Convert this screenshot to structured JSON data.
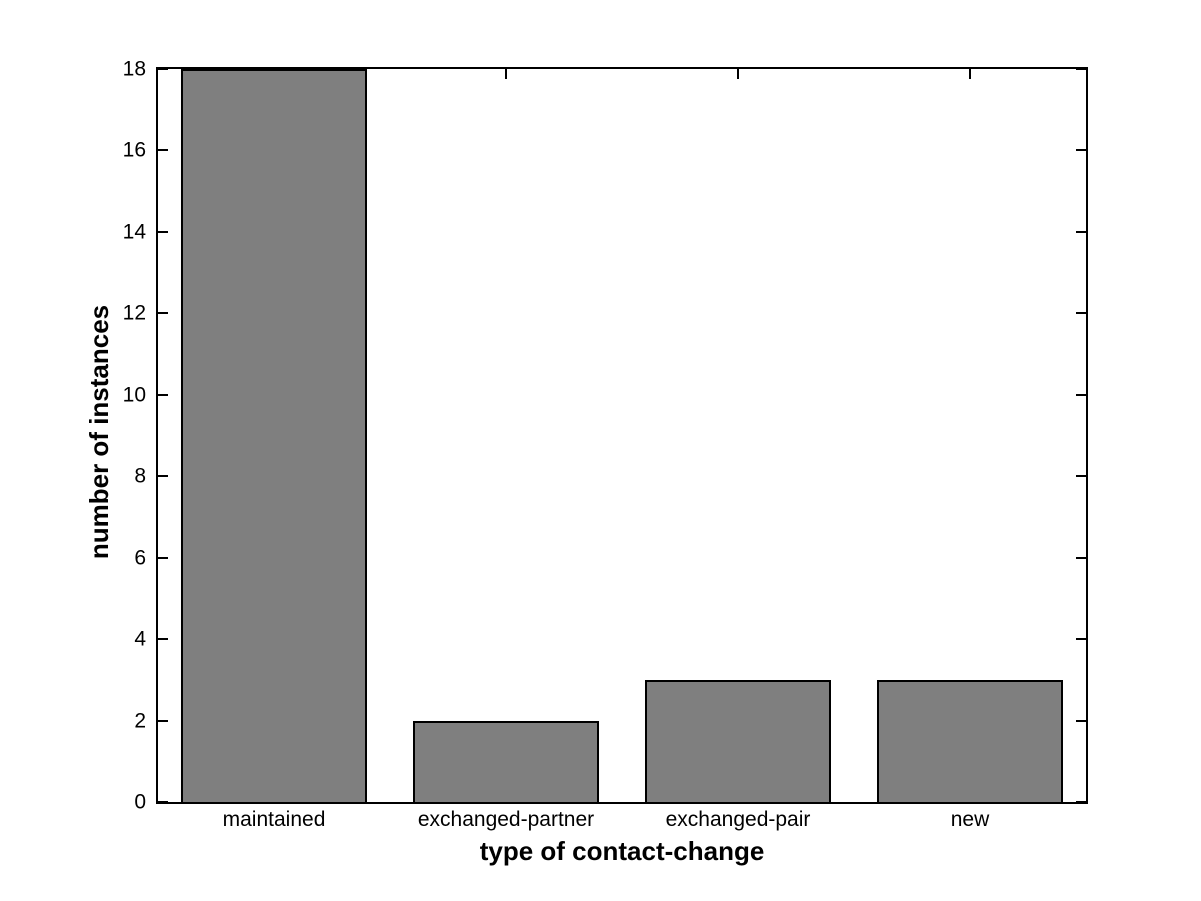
{
  "figure": {
    "background_color": "#ffffff"
  },
  "chart_data": {
    "type": "bar",
    "title": "",
    "categories": [
      "maintained",
      "exchanged-partner",
      "exchanged-pair",
      "new"
    ],
    "values": [
      18,
      2,
      3,
      3
    ],
    "xlabel": "type of contact-change",
    "ylabel": "number of instances",
    "ylim": [
      0,
      18
    ],
    "yticks": [
      0,
      2,
      4,
      6,
      8,
      10,
      12,
      14,
      16,
      18
    ],
    "bar_width_fraction": 0.8,
    "bar_fill_color": "#7f7f7f",
    "bar_edge_color": "#000000",
    "axis_color": "#000000",
    "grid": false,
    "box": true,
    "legend_position": "none"
  }
}
